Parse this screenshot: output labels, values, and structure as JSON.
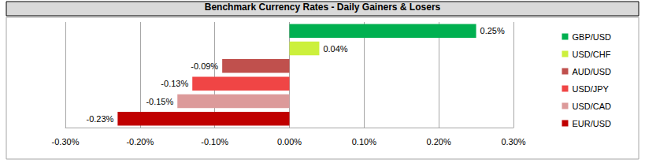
{
  "chart_data": {
    "type": "bar",
    "title": "Benchmark Currency Rates - Daily Gainers & Losers",
    "orientation": "horizontal",
    "categories": [
      "GBP/USD",
      "USD/CHF",
      "AUD/USD",
      "USD/JPY",
      "USD/CAD",
      "EUR/USD"
    ],
    "values": [
      0.25,
      0.04,
      -0.09,
      -0.13,
      -0.15,
      -0.23
    ],
    "value_labels": [
      "0.25%",
      "0.04%",
      "-0.09%",
      "-0.13%",
      "-0.15%",
      "-0.23%"
    ],
    "colors": [
      "#00b050",
      "#ccf03c",
      "#c0504d",
      "#f04545",
      "#dc9a9a",
      "#c00000"
    ],
    "xlim": [
      -0.3,
      0.3
    ],
    "xticks": [
      {
        "value": -0.3,
        "label": "-0.30%"
      },
      {
        "value": -0.2,
        "label": "-0.20%"
      },
      {
        "value": -0.1,
        "label": "-0.10%"
      },
      {
        "value": 0,
        "label": "0.00%"
      },
      {
        "value": 0.1,
        "label": "0.10%"
      },
      {
        "value": 0.2,
        "label": "0.20%"
      },
      {
        "value": 0.3,
        "label": "0.30%"
      }
    ],
    "grid": true,
    "data_labels": true,
    "legend": "right",
    "tick_labels": "x"
  }
}
